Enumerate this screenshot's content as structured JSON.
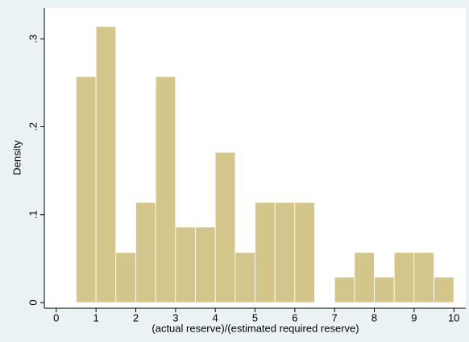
{
  "chart_data": {
    "type": "histogram",
    "x_label": "(actual reserve)/(estimated required reserve)",
    "y_label": "Density",
    "bins": [
      0.5,
      1,
      1.5,
      2,
      2.5,
      3,
      3.5,
      4,
      4.5,
      5,
      5.5,
      6,
      6.5,
      7,
      7.5,
      8,
      8.5,
      9,
      9.5,
      10
    ],
    "values": [
      0.257,
      0.314,
      0.057,
      0.114,
      0.257,
      0.086,
      0.086,
      0.171,
      0.057,
      0.114,
      0.114,
      0.114,
      0,
      0.029,
      0.057,
      0.029,
      0.057,
      0.057,
      0.029
    ],
    "color": "#d4c68a",
    "xlim": [
      -0.3,
      10.3
    ],
    "xticks": [
      0,
      1,
      2,
      3,
      4,
      5,
      6,
      7,
      8,
      9,
      10
    ],
    "ylim": [
      0,
      0.335
    ],
    "yticks": [
      0,
      {
        "value": 0.1,
        "label": ".1"
      },
      {
        "value": 0.2,
        "label": ".2"
      },
      {
        "value": 0.3,
        "label": ".3"
      }
    ]
  }
}
